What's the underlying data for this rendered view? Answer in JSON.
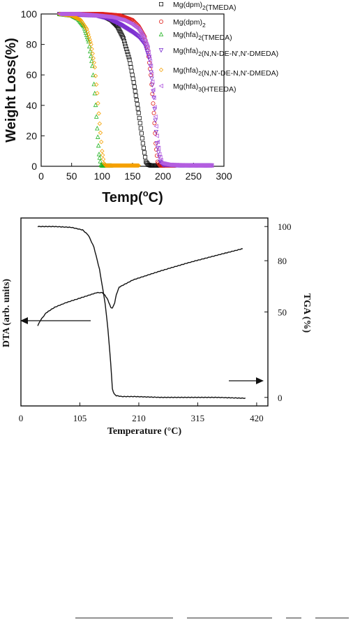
{
  "chart_data": [
    {
      "type": "scatter",
      "title": "",
      "xlabel": "Temp(°C)",
      "ylabel": "Weight Loss(%)",
      "xlim": [
        0,
        300
      ],
      "ylim": [
        0,
        100
      ],
      "xticks": [
        0,
        50,
        100,
        150,
        200,
        250,
        300
      ],
      "yticks": [
        0,
        20,
        40,
        60,
        80,
        100
      ],
      "legend_position": "top-right, outside plot",
      "grid": false,
      "series": [
        {
          "name": "Mg(dpm)2(TMEDA)",
          "marker": "square",
          "color": "#111111",
          "x": [
            30,
            60,
            90,
            105,
            115,
            125,
            135,
            145,
            152,
            160,
            167,
            172,
            176,
            180,
            190,
            200
          ],
          "y": [
            100,
            100,
            99.5,
            98,
            96,
            92,
            84,
            70,
            55,
            35,
            15,
            3,
            1,
            0.5,
            0.5,
            0.5
          ]
        },
        {
          "name": "Mg(dpm)2",
          "marker": "circle",
          "color": "#e0201a",
          "x": [
            30,
            60,
            100,
            130,
            150,
            160,
            170,
            175,
            180,
            185,
            188,
            191,
            195,
            205,
            220
          ],
          "y": [
            100,
            100,
            100,
            99,
            96,
            92,
            85,
            76,
            60,
            35,
            15,
            3,
            0.5,
            0.5,
            0.5
          ]
        },
        {
          "name": "Mg(hfa)2(TMEDA)",
          "marker": "triangle-up",
          "color": "#22b322",
          "x": [
            30,
            50,
            60,
            70,
            78,
            84,
            88,
            92,
            95,
            98,
            100,
            105,
            115
          ],
          "y": [
            100,
            99,
            97,
            92,
            82,
            66,
            48,
            25,
            8,
            1,
            0.5,
            0.5,
            0.5
          ]
        },
        {
          "name": "Mg(hfa)2(N,N-DE-N',N'-DMEDA)",
          "marker": "triangle-down",
          "color": "#7b2fd0",
          "x": [
            30,
            60,
            90,
            110,
            130,
            150,
            160,
            170,
            178,
            185,
            190,
            195,
            200,
            230,
            260,
            280
          ],
          "y": [
            100,
            99.5,
            99,
            97,
            93,
            88,
            85,
            80,
            70,
            45,
            15,
            3,
            1,
            0.5,
            0.5,
            0.5
          ]
        },
        {
          "name": "Mg(hfa)2(N,N'-DE-N,N'-DMEDA)",
          "marker": "diamond",
          "color": "#f5a100",
          "x": [
            30,
            50,
            65,
            75,
            82,
            88,
            92,
            96,
            100,
            103,
            106,
            115,
            130,
            160
          ],
          "y": [
            100,
            99,
            96,
            90,
            80,
            65,
            48,
            28,
            10,
            2,
            0.5,
            0.5,
            0.5,
            0.5
          ]
        },
        {
          "name": "Mg(hfa)3(HTEEDA)",
          "marker": "triangle-left",
          "color": "#b45fe0",
          "x": [
            30,
            60,
            90,
            115,
            135,
            150,
            160,
            168,
            175,
            180,
            185,
            190,
            194,
            198,
            210,
            250,
            280
          ],
          "y": [
            100,
            100,
            99,
            98,
            96,
            93,
            90,
            85,
            78,
            66,
            45,
            20,
            8,
            2,
            1,
            0.5,
            0.5
          ]
        }
      ]
    },
    {
      "type": "line",
      "title": "",
      "xlabel": "Temperature (°C)",
      "ylabel_left": "DTA (arb. units)",
      "ylabel_right": "TGA (%)",
      "xlim": [
        0,
        440
      ],
      "xticks": [
        0,
        105,
        210,
        315,
        420
      ],
      "ylim_right": [
        -5,
        105
      ],
      "yticks_right": [
        0,
        50,
        80,
        100
      ],
      "grid": false,
      "series": [
        {
          "name": "",
          "axis": "right",
          "x": [
            30,
            60,
            90,
            110,
            120,
            130,
            140,
            150,
            155,
            160,
            163,
            166,
            170,
            180,
            200,
            250,
            300,
            350,
            400
          ],
          "y": [
            100,
            100,
            99.5,
            98,
            95,
            88,
            75,
            55,
            40,
            20,
            5,
            2,
            1,
            0.5,
            0.5,
            0,
            0,
            0,
            -0.5
          ]
        },
        {
          "name": "",
          "axis": "left",
          "x": [
            30,
            35,
            45,
            60,
            80,
            100,
            120,
            135,
            145,
            150,
            155,
            160,
            163,
            167,
            170,
            175,
            200,
            250,
            300,
            350,
            395
          ],
          "y": [
            0.16,
            0.22,
            0.3,
            0.36,
            0.41,
            0.45,
            0.49,
            0.52,
            0.52,
            0.49,
            0.44,
            0.36,
            0.35,
            0.41,
            0.5,
            0.58,
            0.66,
            0.76,
            0.85,
            0.93,
            1.0
          ]
        }
      ]
    }
  ]
}
